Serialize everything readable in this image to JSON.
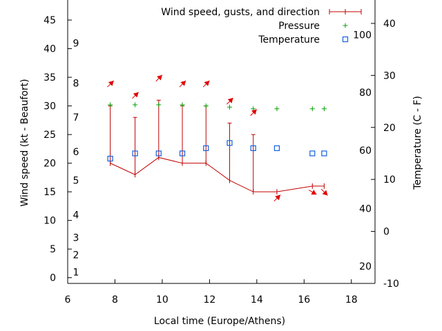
{
  "chart_data": {
    "type": "line",
    "xlabel": "Local time (Europe/Athens)",
    "ylabel": "Wind speed (kt - Beaufort)",
    "y2label": "Temperature (C - F)",
    "xlim": [
      6,
      19
    ],
    "ylim": [
      -1,
      48.5
    ],
    "y2lim": [
      -10,
      44.5
    ],
    "x_ticks": [
      "6",
      "8",
      "10",
      "12",
      "14",
      "16",
      "18"
    ],
    "y_ticks": [
      "0",
      "5",
      "10",
      "15",
      "20",
      "25",
      "30",
      "35",
      "40",
      "45"
    ],
    "y2_ticks": [
      "-10",
      "0",
      "10",
      "20",
      "30",
      "40"
    ],
    "beaufort_labels": [
      {
        "text": "1",
        "y": 1
      },
      {
        "text": "2",
        "y": 4
      },
      {
        "text": "3",
        "y": 7
      },
      {
        "text": "4",
        "y": 11
      },
      {
        "text": "5",
        "y": 17
      },
      {
        "text": "6",
        "y": 22
      },
      {
        "text": "7",
        "y": 28
      },
      {
        "text": "8",
        "y": 34
      },
      {
        "text": "9",
        "y": 41
      }
    ],
    "fahrenheit_labels": [
      {
        "text": "20",
        "y2": -6.7
      },
      {
        "text": "40",
        "y2": 4.4
      },
      {
        "text": "60",
        "y2": 15.6
      },
      {
        "text": "80",
        "y2": 26.7
      },
      {
        "text": "100",
        "y2": 37.8
      }
    ],
    "legend_position": "top-right",
    "series": [
      {
        "name": "Wind speed, gusts, and direction",
        "color": "#c00000",
        "x": [
          7.8,
          8.85,
          9.85,
          10.85,
          11.85,
          12.85,
          13.85,
          14.85,
          16.35,
          16.85
        ],
        "values": [
          20,
          18,
          21,
          20,
          20,
          17,
          15,
          15,
          16,
          16
        ],
        "gusts": [
          30,
          28,
          31,
          30,
          30,
          27,
          25,
          null,
          null,
          null
        ],
        "direction_deg": [
          225,
          225,
          225,
          225,
          225,
          225,
          225,
          225,
          300,
          315
        ]
      },
      {
        "name": "Pressure",
        "color": "#00a000",
        "x": [
          7.8,
          8.85,
          9.85,
          10.85,
          11.85,
          12.85,
          13.85,
          14.85,
          16.35,
          16.85
        ],
        "values": [
          30.2,
          30.2,
          30.2,
          30.2,
          30.0,
          29.8,
          29.5,
          29.5,
          29.5,
          29.5
        ]
      },
      {
        "name": "Temperature",
        "color": "#1060e0",
        "axis": "y2",
        "x": [
          7.8,
          8.85,
          9.85,
          10.85,
          11.85,
          12.85,
          13.85,
          14.85,
          16.35,
          16.85
        ],
        "values": [
          14,
          15,
          15,
          15,
          16,
          17,
          16,
          16,
          15,
          15
        ]
      }
    ]
  }
}
